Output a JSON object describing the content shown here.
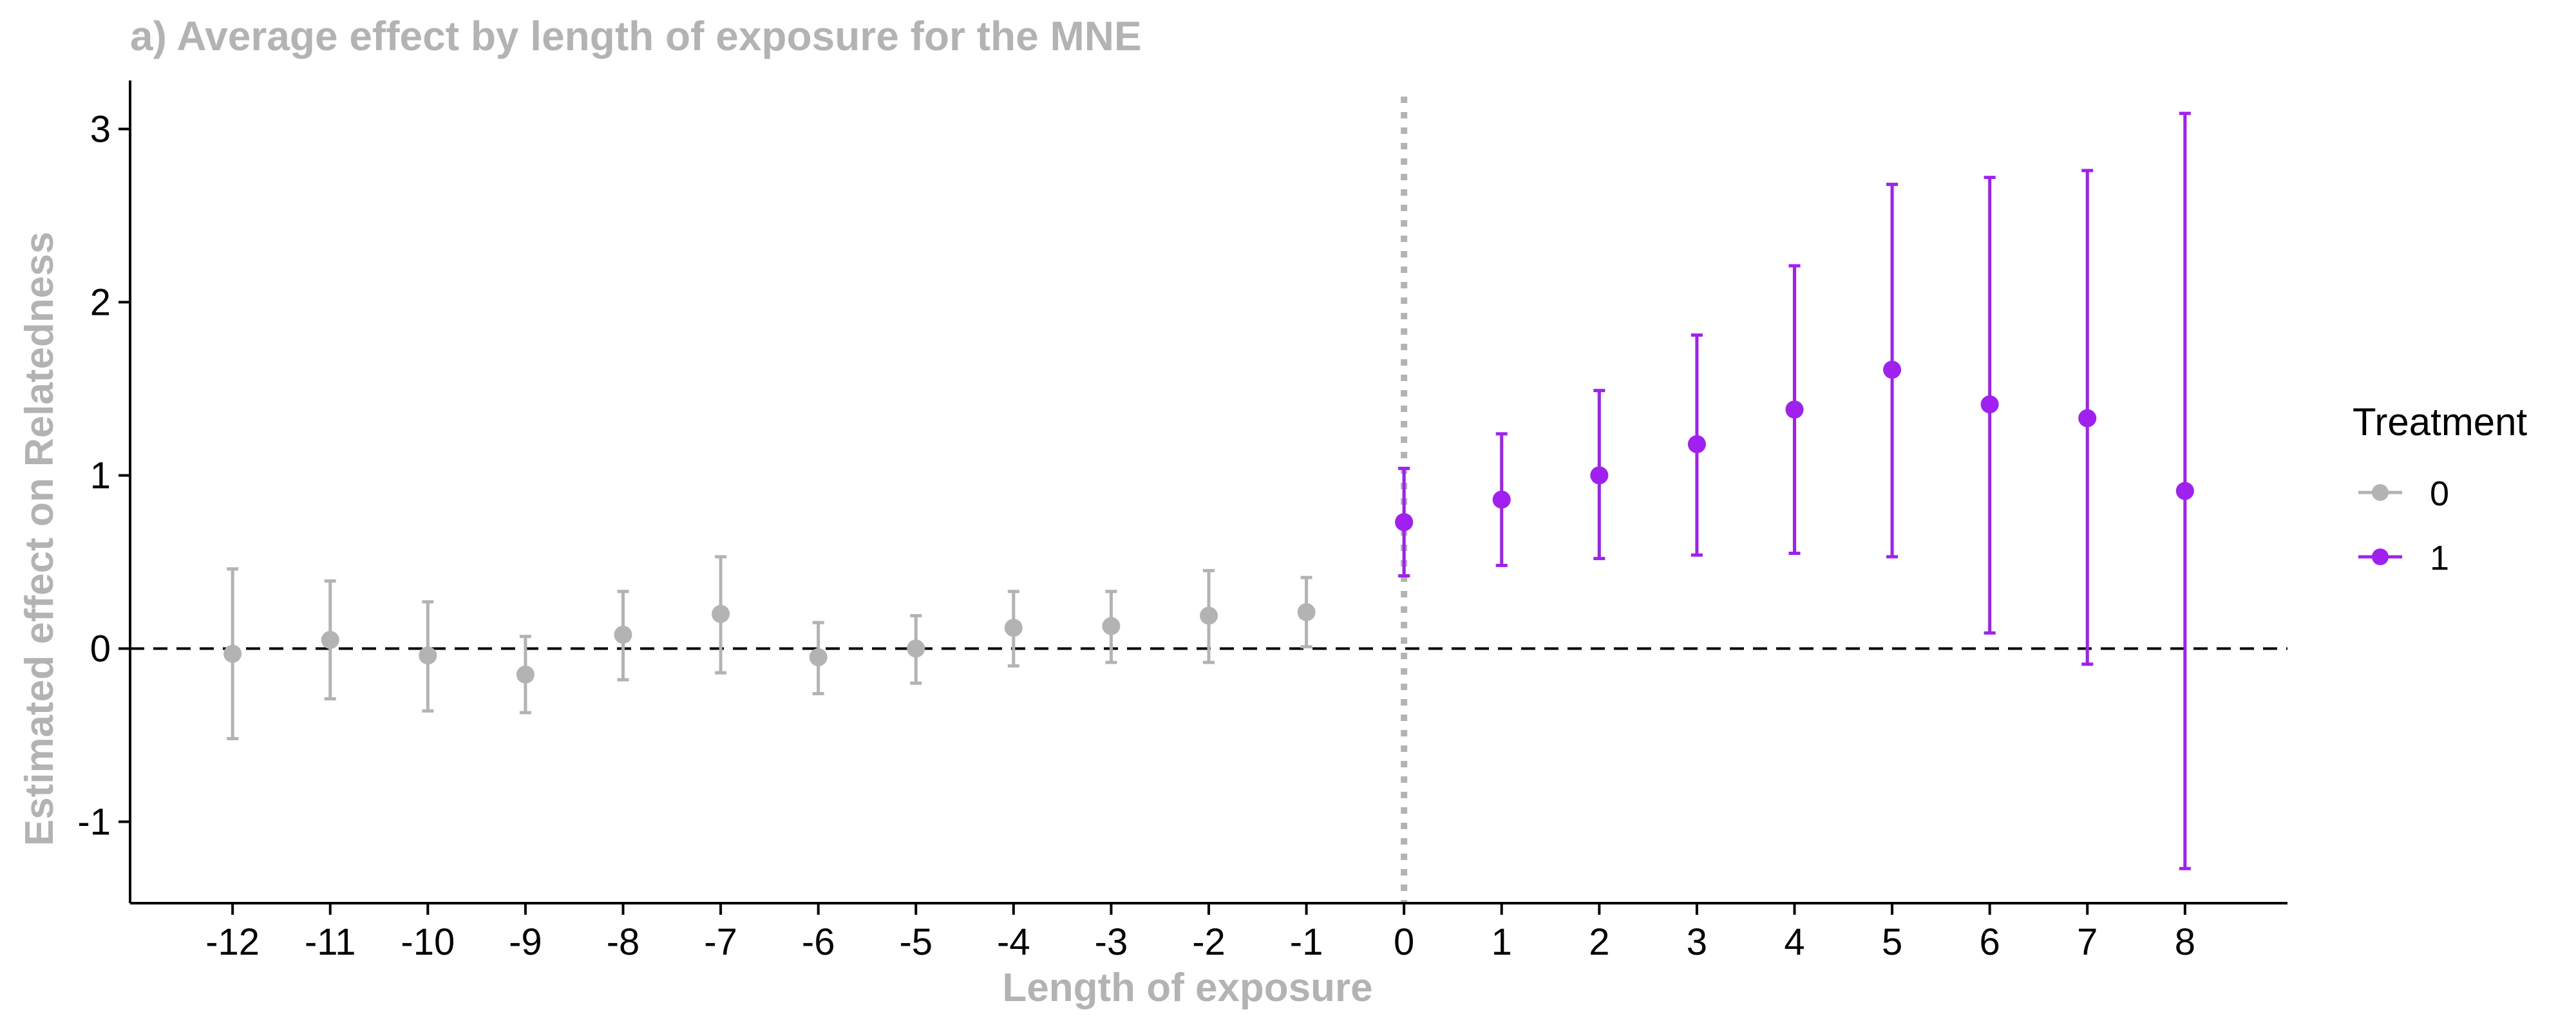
{
  "chart_data": {
    "type": "scatter",
    "title": "a) Average effect by length of exposure for the MNE",
    "xlabel": "Length of exposure",
    "ylabel": "Estimated effect on Relatedness",
    "xlim": [
      -13.05,
      9.05
    ],
    "ylim": [
      -1.47,
      3.28
    ],
    "x_ticks": [
      -12,
      -11,
      -10,
      -9,
      -8,
      -7,
      -6,
      -5,
      -4,
      -3,
      -2,
      -1,
      0,
      1,
      2,
      3,
      4,
      5,
      6,
      7,
      8
    ],
    "y_ticks": [
      -1,
      0,
      1,
      2,
      3
    ],
    "reference_lines": {
      "horizontal_y": 0,
      "vertical_x": 0
    },
    "legend": {
      "title": "Treatment",
      "position": "right"
    },
    "colors": {
      "0": "#b3b3b3",
      "1": "#a020f0",
      "zero_line": "#000000",
      "event_line": "#b3b3b3"
    },
    "series": [
      {
        "name": "0",
        "points": [
          {
            "x": -12,
            "y": -0.03,
            "lo": -0.52,
            "hi": 0.46
          },
          {
            "x": -11,
            "y": 0.05,
            "lo": -0.29,
            "hi": 0.39
          },
          {
            "x": -10,
            "y": -0.04,
            "lo": -0.36,
            "hi": 0.27
          },
          {
            "x": -9,
            "y": -0.15,
            "lo": -0.37,
            "hi": 0.07
          },
          {
            "x": -8,
            "y": 0.08,
            "lo": -0.18,
            "hi": 0.33
          },
          {
            "x": -7,
            "y": 0.2,
            "lo": -0.14,
            "hi": 0.53
          },
          {
            "x": -6,
            "y": -0.05,
            "lo": -0.26,
            "hi": 0.15
          },
          {
            "x": -5,
            "y": 0.0,
            "lo": -0.2,
            "hi": 0.19
          },
          {
            "x": -4,
            "y": 0.12,
            "lo": -0.1,
            "hi": 0.33
          },
          {
            "x": -3,
            "y": 0.13,
            "lo": -0.08,
            "hi": 0.33
          },
          {
            "x": -2,
            "y": 0.19,
            "lo": -0.08,
            "hi": 0.45
          },
          {
            "x": -1,
            "y": 0.21,
            "lo": 0.01,
            "hi": 0.41
          },
          {
            "x": 0,
            "y": 0.73,
            "lo": 0.42,
            "hi": 1.04
          }
        ]
      },
      {
        "name": "1",
        "points": [
          {
            "x": 0,
            "y": 0.73,
            "lo": 0.42,
            "hi": 1.04
          },
          {
            "x": 1,
            "y": 0.86,
            "lo": 0.48,
            "hi": 1.24
          },
          {
            "x": 2,
            "y": 1.0,
            "lo": 0.52,
            "hi": 1.49
          },
          {
            "x": 3,
            "y": 1.18,
            "lo": 0.54,
            "hi": 1.81
          },
          {
            "x": 4,
            "y": 1.38,
            "lo": 0.55,
            "hi": 2.21
          },
          {
            "x": 5,
            "y": 1.61,
            "lo": 0.53,
            "hi": 2.68
          },
          {
            "x": 6,
            "y": 1.41,
            "lo": 0.09,
            "hi": 2.72
          },
          {
            "x": 7,
            "y": 1.33,
            "lo": -0.09,
            "hi": 2.76
          },
          {
            "x": 8,
            "y": 0.91,
            "lo": -1.27,
            "hi": 3.09
          }
        ]
      }
    ]
  }
}
